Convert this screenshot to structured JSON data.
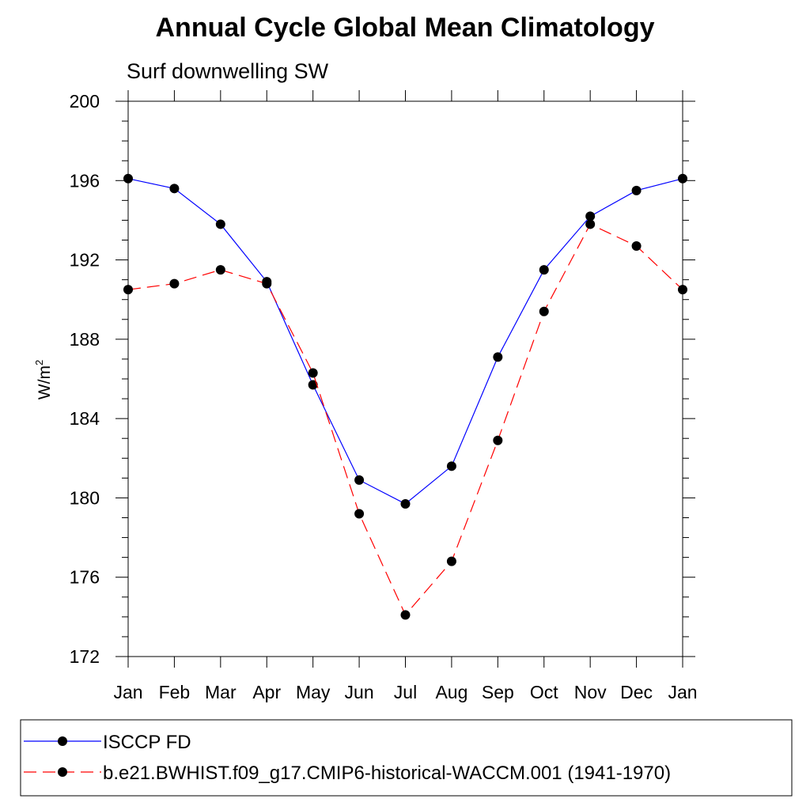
{
  "chart_data": {
    "type": "line",
    "title": "Annual Cycle Global Mean Climatology",
    "subtitle": "Surf downwelling SW",
    "ylabel": "W/m",
    "ylabel_sup": "2",
    "xlabel": "",
    "categories": [
      "Jan",
      "Feb",
      "Mar",
      "Apr",
      "May",
      "Jun",
      "Jul",
      "Aug",
      "Sep",
      "Oct",
      "Nov",
      "Dec",
      "Jan"
    ],
    "ylim": [
      172,
      200
    ],
    "yticks": [
      172,
      176,
      180,
      184,
      188,
      192,
      196,
      200
    ],
    "grid": false,
    "legend_position": "bottom",
    "series": [
      {
        "name": "ISCCP FD",
        "color": "#0000ff",
        "dash": "solid",
        "marker": "circle",
        "values": [
          196.1,
          195.6,
          193.8,
          190.9,
          185.7,
          180.9,
          179.7,
          181.6,
          187.1,
          191.5,
          194.2,
          195.5,
          196.1
        ]
      },
      {
        "name": "b.e21.BWHIST.f09_g17.CMIP6-historical-WACCM.001 (1941-1970)",
        "color": "#ff0000",
        "dash": "dashed",
        "marker": "circle",
        "values": [
          190.5,
          190.8,
          191.5,
          190.8,
          186.3,
          179.2,
          174.1,
          176.8,
          182.9,
          189.4,
          193.8,
          192.7,
          190.5
        ]
      }
    ]
  }
}
